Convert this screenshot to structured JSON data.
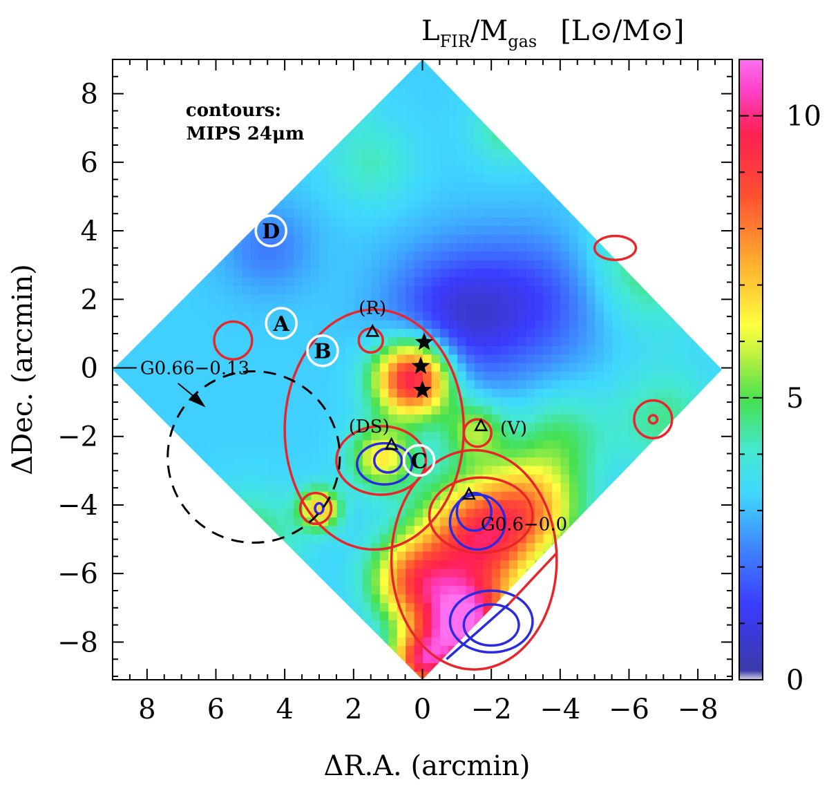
{
  "chart_data": {
    "type": "heatmap",
    "title": "L_FIR/M_gas   [L⊙/M⊙]",
    "title_parts": {
      "prefix": "L",
      "sub1": "FIR",
      "mid": "/M",
      "sub2": "gas",
      "units": "[L⊙/M⊙]"
    },
    "xlabel": "ΔR.A. (arcmin)",
    "ylabel": "ΔDec. (arcmin)",
    "xlim": [
      9,
      -9
    ],
    "ylim": [
      -9.1,
      9
    ],
    "x_ticks": [
      "8",
      "6",
      "4",
      "2",
      "0",
      "−2",
      "−4",
      "−6",
      "−8"
    ],
    "x_tick_values": [
      8,
      6,
      4,
      2,
      0,
      -2,
      -4,
      -6,
      -8
    ],
    "y_ticks": [
      "8",
      "6",
      "4",
      "2",
      "0",
      "−2",
      "−4",
      "−6",
      "−8"
    ],
    "y_tick_values": [
      8,
      6,
      4,
      2,
      0,
      -2,
      -4,
      -6,
      -8
    ],
    "colorbar": {
      "range": [
        0,
        11
      ],
      "ticks": [
        "0",
        "5",
        "10"
      ],
      "tick_values": [
        0,
        5,
        10
      ]
    },
    "colors": {
      "contour_mips": "#e8262a",
      "contour_inner": "#2a2ae0",
      "dashed": "#000000",
      "site_ring": "#ffffff"
    },
    "contour_legend": [
      "contours:",
      "MIPS 24μm"
    ],
    "map_blobs": [
      {
        "x": 0.3,
        "y": -0.3,
        "value": 10.2,
        "r": 1.1
      },
      {
        "x": -1.6,
        "y": -5.0,
        "value": 9.0,
        "r": 1.7
      },
      {
        "x": -1.2,
        "y": -7.5,
        "value": 10.5,
        "r": 1.3
      },
      {
        "x": 1.2,
        "y": -2.6,
        "value": 6.5,
        "r": 0.9
      },
      {
        "x": 3.0,
        "y": -4.1,
        "value": 7.0,
        "r": 0.6
      },
      {
        "x": 0.0,
        "y": -8.6,
        "value": 8.5,
        "r": 0.9
      },
      {
        "x": -3.2,
        "y": -4.0,
        "value": 6.5,
        "r": 1.4
      },
      {
        "x": 0.3,
        "y": -6.2,
        "value": 7.5,
        "r": 1.2
      },
      {
        "x": -1.5,
        "y": -1.8,
        "value": 5.5,
        "r": 0.9
      },
      {
        "x": -1.0,
        "y": 1.5,
        "value": 1.0,
        "r": 2.0
      },
      {
        "x": -3.5,
        "y": 2.0,
        "value": 1.8,
        "r": 2.0
      },
      {
        "x": 4.5,
        "y": 3.5,
        "value": 2.2,
        "r": 1.3
      },
      {
        "x": 1.5,
        "y": 6.0,
        "value": 4.2,
        "r": 1.2
      },
      {
        "x": -2.5,
        "y": 7.0,
        "value": 4.6,
        "r": 1.0
      },
      {
        "x": -6.5,
        "y": 3.0,
        "value": 4.8,
        "r": 1.8
      },
      {
        "x": -7.0,
        "y": -1.5,
        "value": 4.5,
        "r": 1.5
      },
      {
        "x": 2.5,
        "y": 8.0,
        "value": 4.3,
        "r": 0.9
      },
      {
        "x": 5.0,
        "y": -5.0,
        "value": 4.8,
        "r": 1.4
      },
      {
        "x": -4.0,
        "y": -2.0,
        "value": 4.6,
        "r": 1.3
      }
    ],
    "map_base_value": 3.2,
    "contours_red": [
      {
        "name": "contour-red-g060",
        "x": -1.7,
        "y": -4.3,
        "rx": 1.5,
        "ry": 1.1
      },
      {
        "name": "contour-red-g060-outer",
        "x": -1.5,
        "y": -5.6,
        "rx": 2.4,
        "ry": 3.2
      },
      {
        "name": "contour-red-ds",
        "x": 1.2,
        "y": -2.7,
        "rx": 1.3,
        "ry": 1.0
      },
      {
        "name": "contour-red-ds-outer",
        "x": 1.4,
        "y": -1.8,
        "rx": 2.6,
        "ry": 3.5
      },
      {
        "name": "contour-red-west-knot",
        "x": 3.1,
        "y": -4.1,
        "rx": 0.45,
        "ry": 0.45
      },
      {
        "name": "contour-red-r",
        "x": 1.5,
        "y": 0.8,
        "rx": 0.35,
        "ry": 0.35
      },
      {
        "name": "contour-red-v",
        "x": -1.6,
        "y": -1.9,
        "rx": 0.4,
        "ry": 0.4
      },
      {
        "name": "contour-red-east",
        "x": 5.5,
        "y": 0.8,
        "rx": 0.55,
        "ry": 0.55
      },
      {
        "name": "contour-red-nw",
        "x": -5.6,
        "y": 3.5,
        "rx": 0.6,
        "ry": 0.35
      },
      {
        "name": "contour-red-far-west",
        "x": -6.7,
        "y": -1.5,
        "rx": 0.55,
        "ry": 0.55
      },
      {
        "name": "contour-red-far-west-inner",
        "x": -6.7,
        "y": -1.5,
        "rx": 0.12,
        "ry": 0.12
      }
    ],
    "contours_blue": [
      {
        "name": "contour-blue-g060",
        "x": -1.6,
        "y": -4.5,
        "rx": 0.8,
        "ry": 0.8
      },
      {
        "name": "contour-blue-g060-inner",
        "x": -1.5,
        "y": -4.2,
        "rx": 0.5,
        "ry": 0.55
      },
      {
        "name": "contour-blue-ds",
        "x": 1.1,
        "y": -2.8,
        "rx": 0.8,
        "ry": 0.6
      },
      {
        "name": "contour-blue-ds-inner",
        "x": 1.0,
        "y": -2.7,
        "rx": 0.4,
        "ry": 0.35
      },
      {
        "name": "contour-blue-west-knot",
        "x": 3.0,
        "y": -4.1,
        "rx": 0.12,
        "ry": 0.15
      },
      {
        "name": "contour-blue-south",
        "x": -2.0,
        "y": -7.4,
        "rx": 1.2,
        "ry": 0.9
      },
      {
        "name": "contour-blue-south-inner",
        "x": -2.0,
        "y": -7.5,
        "rx": 0.8,
        "ry": 0.6
      }
    ],
    "dashed_circle": {
      "x": 4.9,
      "y": -2.6,
      "r": 2.5,
      "label": "G0.66−0.13"
    },
    "sites": [
      {
        "letter": "D",
        "x": 4.4,
        "y": 4.0
      },
      {
        "letter": "A",
        "x": 4.1,
        "y": 1.3
      },
      {
        "letter": "B",
        "x": 2.9,
        "y": 0.5
      },
      {
        "letter": "C",
        "x": 0.1,
        "y": -2.7
      }
    ],
    "triangles": [
      {
        "label": "(R)",
        "x": 1.45,
        "y": 1.05
      },
      {
        "label": "(DS)",
        "x": 0.9,
        "y": -2.25
      },
      {
        "label": "(V)",
        "x": -1.7,
        "y": -1.7
      },
      {
        "label": "",
        "x": -1.35,
        "y": -3.7
      }
    ],
    "stars": [
      {
        "x": -0.05,
        "y": 0.75
      },
      {
        "x": 0.05,
        "y": 0.05
      },
      {
        "x": 0.0,
        "y": -0.65
      }
    ],
    "labels": [
      {
        "text": "(R)",
        "x": 1.45,
        "y": 1.75
      },
      {
        "text": "(DS)",
        "x": 1.55,
        "y": -1.7
      },
      {
        "text": "(V)",
        "x": -2.65,
        "y": -1.75
      },
      {
        "text": "G0.6−0.0",
        "x": -2.95,
        "y": -4.55
      }
    ]
  }
}
